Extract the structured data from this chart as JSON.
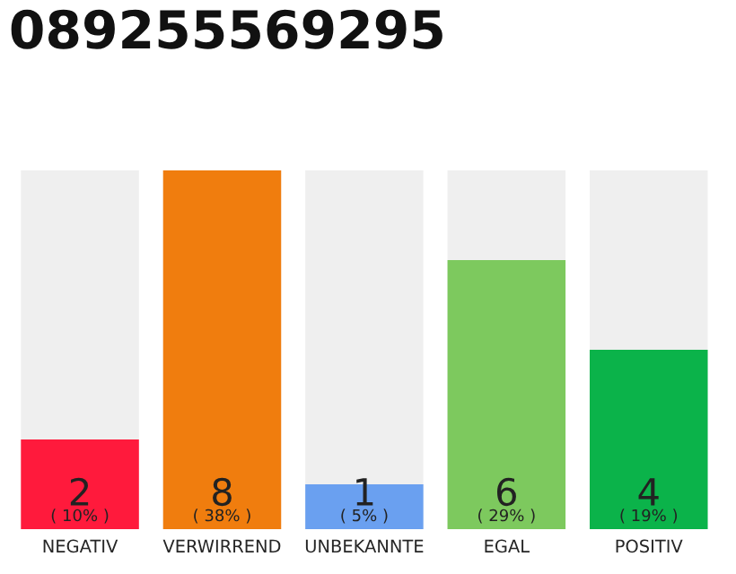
{
  "chart_data": {
    "type": "bar",
    "title": "089255569295",
    "categories": [
      "NEGATIV",
      "VERWIRREND",
      "UNBEKANNTE",
      "EGAL",
      "POSITIV"
    ],
    "values": [
      2,
      8,
      1,
      6,
      4
    ],
    "colors": [
      "#ff1a3c",
      "#f07d0e",
      "#6aa0f0",
      "#7dc95e",
      "#0bb34a"
    ],
    "value_labels": [
      "2\n( 10% )",
      "8\n( 38% )",
      "1\n( 5% )",
      "6\n( 29% )",
      "4\n( 19% )"
    ],
    "ylim": [
      0,
      8
    ],
    "tick_labels": "x",
    "grid": false,
    "legend": false
  }
}
